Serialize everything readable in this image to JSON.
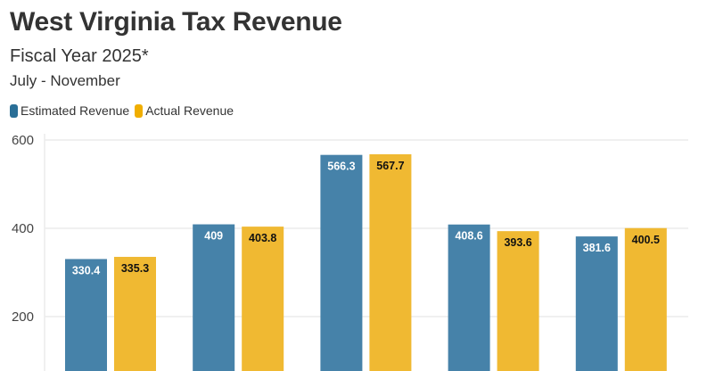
{
  "header": {
    "title": "West Virginia Tax Revenue",
    "subtitle": "Fiscal Year 2025*",
    "period": "July - November"
  },
  "chart_data": {
    "type": "bar",
    "title": "West Virginia Tax Revenue",
    "subtitle": "Fiscal Year 2025*",
    "ylim": [
      0,
      600
    ],
    "yticks": [
      200,
      400,
      600
    ],
    "grid": true,
    "legend_position": "top-left",
    "series": [
      {
        "name": "Estimated Revenue",
        "color": "#4682a9",
        "legend_color": "#2a6f97",
        "label_color": "#ffffff",
        "values": [
          330.4,
          409,
          566.3,
          408.6,
          381.6
        ]
      },
      {
        "name": "Actual Revenue",
        "color": "#f0b932",
        "legend_color": "#f0ae00",
        "label_color": "#111111",
        "values": [
          335.3,
          403.8,
          567.7,
          393.6,
          400.5
        ]
      }
    ]
  }
}
